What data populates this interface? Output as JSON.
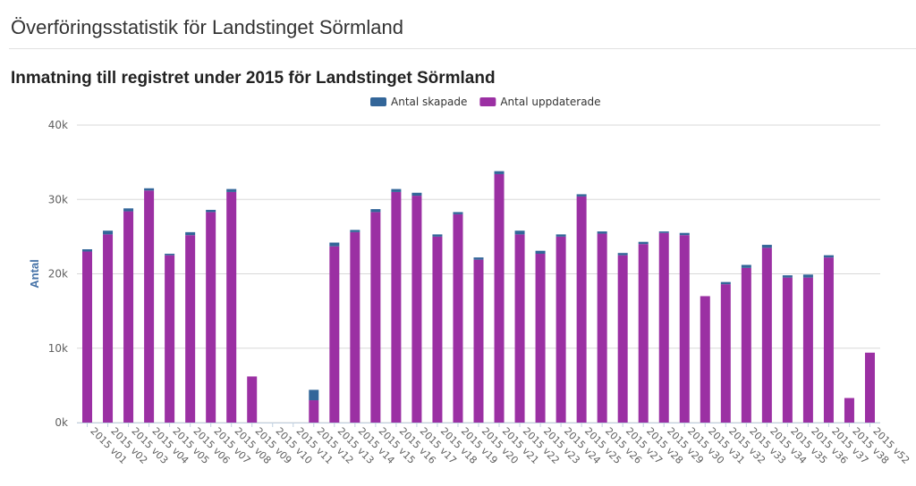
{
  "page": {
    "title": "Överföringsstatistik för Landstinget Sörmland"
  },
  "chart_data": {
    "type": "bar",
    "stacked": true,
    "title": "Inmatning till registret under 2015 för Landstinget Sörmland",
    "xlabel": "",
    "ylabel": "Antal",
    "ylim": [
      0,
      40000
    ],
    "yticks": [
      "0k",
      "10k",
      "20k",
      "30k",
      "40k"
    ],
    "grid": true,
    "legend_position": "top-center",
    "categories": [
      "2015 v01",
      "2015 v02",
      "2015 v03",
      "2015 v04",
      "2015 v05",
      "2015 v06",
      "2015 v07",
      "2015 v08",
      "2015 v09",
      "2015 v10",
      "2015 v11",
      "2015 v12",
      "2015 v13",
      "2015 v14",
      "2015 v15",
      "2015 v16",
      "2015 v17",
      "2015 v18",
      "2015 v19",
      "2015 v20",
      "2015 v21",
      "2015 v22",
      "2015 v23",
      "2015 v24",
      "2015 v25",
      "2015 v26",
      "2015 v27",
      "2015 v28",
      "2015 v29",
      "2015 v30",
      "2015 v31",
      "2015 v32",
      "2015 v33",
      "2015 v34",
      "2015 v35",
      "2015 v36",
      "2015 v37",
      "2015 v38",
      "2015 v52"
    ],
    "series": [
      {
        "name": "Antal uppdaterade",
        "color": "#9b30a3",
        "values": [
          23000,
          25300,
          28400,
          31200,
          22500,
          25200,
          28300,
          31000,
          6200,
          0,
          0,
          3000,
          23700,
          25600,
          28300,
          31000,
          30500,
          25000,
          28000,
          21900,
          33400,
          25300,
          22700,
          25000,
          30400,
          25400,
          22500,
          24000,
          25500,
          25200,
          17000,
          18600,
          20800,
          23500,
          19500,
          19500,
          22200,
          3300,
          9400
        ]
      },
      {
        "name": "Antal skapade",
        "color": "#336699",
        "values": [
          300,
          500,
          400,
          300,
          200,
          400,
          300,
          400,
          0,
          0,
          0,
          1400,
          500,
          300,
          400,
          400,
          400,
          300,
          300,
          300,
          400,
          500,
          400,
          300,
          300,
          300,
          300,
          300,
          200,
          300,
          0,
          300,
          400,
          400,
          300,
          400,
          300,
          0,
          0
        ]
      }
    ],
    "legend_order": [
      "Antal skapade",
      "Antal uppdaterade"
    ]
  }
}
